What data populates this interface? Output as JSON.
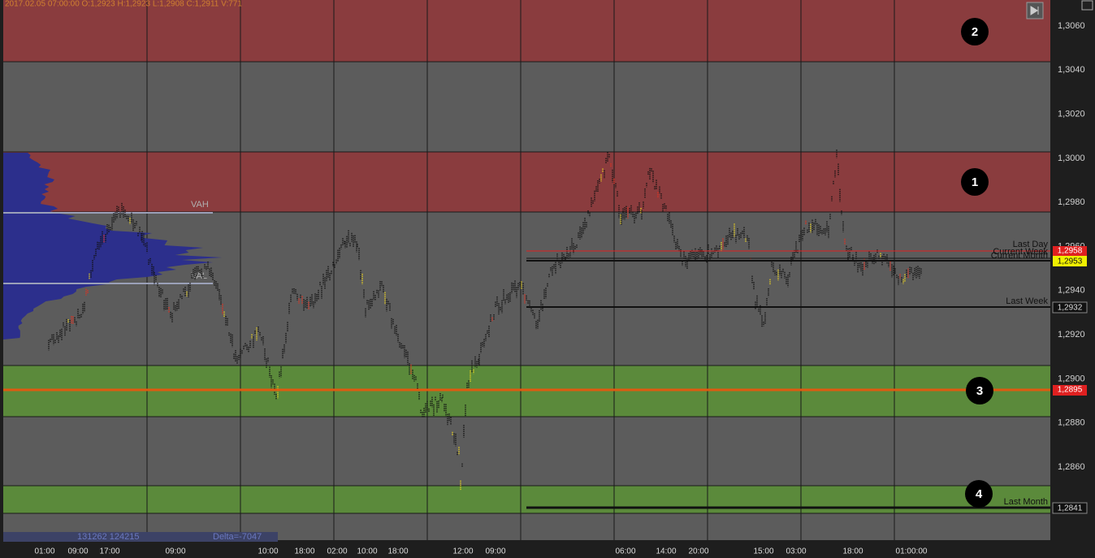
{
  "header": {
    "info": "2017.02.05 07:00:00   O:1,2923   H:1,2923   L:1,2908   C:1,2911   V:771"
  },
  "price_axis": [
    "1,3060",
    "1,3040",
    "1,3020",
    "1,3000",
    "1,2980",
    "1,2960",
    "1,2940",
    "1,2920",
    "1,2900",
    "1,2880",
    "1,2860"
  ],
  "profile_labels": {
    "vah": "VAH",
    "val": "VAL"
  },
  "levels": [
    {
      "name": "Last Day",
      "price": "1,2958"
    },
    {
      "name": "Current Week",
      "price": "1,2953"
    },
    {
      "name": "Current Month",
      "price": ""
    },
    {
      "name": "Last Week",
      "price": "1,2932"
    },
    {
      "name": "Last Month",
      "price": "1,2841"
    }
  ],
  "orange_level": {
    "price": "1,2895"
  },
  "zones": [
    "1",
    "2",
    "3",
    "4"
  ],
  "footer": {
    "volumes": "131262  124215",
    "delta": "Delta=-7047"
  },
  "time_axis": [
    "01:00",
    "09:00",
    "17:00",
    "09:00",
    "10:00",
    "18:00",
    "02:00",
    "10:00",
    "12:00",
    "18:00",
    "09:00",
    "06:00",
    "14:00",
    "20:00",
    "15:00",
    "03:00",
    "18:00",
    "01:00:00"
  ]
}
